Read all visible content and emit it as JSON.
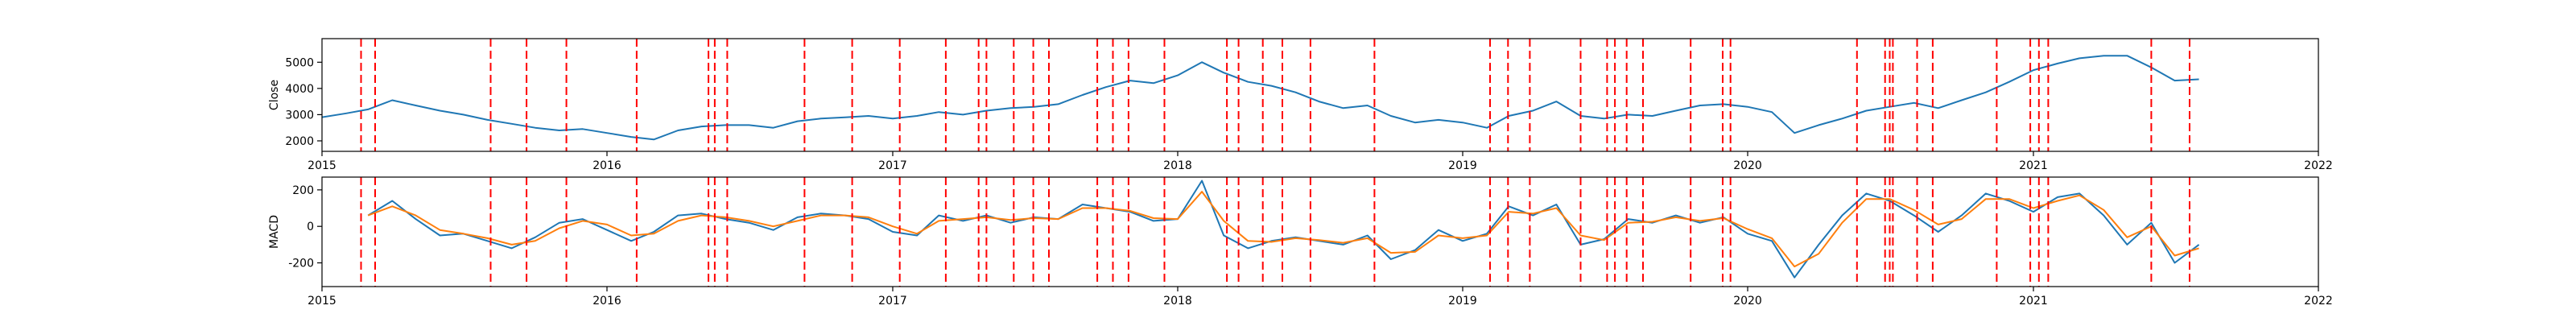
{
  "chart_data": [
    {
      "type": "line",
      "ylabel": "Close",
      "xlim": [
        "2015-01-01",
        "2022-01-01"
      ],
      "ylim": [
        1600,
        5900
      ],
      "yticks": [
        2000,
        3000,
        4000,
        5000
      ],
      "xticks": [
        "2015",
        "2016",
        "2017",
        "2018",
        "2019",
        "2020",
        "2021",
        "2022"
      ],
      "grid": false,
      "series": [
        {
          "color": "#1f77b4",
          "x": [
            "2015-01-01",
            "2015-02-01",
            "2015-03-01",
            "2015-04-01",
            "2015-05-01",
            "2015-06-01",
            "2015-07-01",
            "2015-08-01",
            "2015-09-01",
            "2015-10-01",
            "2015-11-01",
            "2015-12-01",
            "2016-01-01",
            "2016-02-01",
            "2016-03-01",
            "2016-04-01",
            "2016-05-01",
            "2016-06-01",
            "2016-07-01",
            "2016-08-01",
            "2016-09-01",
            "2016-10-01",
            "2016-11-01",
            "2016-12-01",
            "2017-01-01",
            "2017-02-01",
            "2017-03-01",
            "2017-04-01",
            "2017-05-01",
            "2017-06-01",
            "2017-07-01",
            "2017-08-01",
            "2017-09-01",
            "2017-10-01",
            "2017-11-01",
            "2017-12-01",
            "2018-01-01",
            "2018-02-01",
            "2018-03-01",
            "2018-04-01",
            "2018-05-01",
            "2018-06-01",
            "2018-07-01",
            "2018-08-01",
            "2018-09-01",
            "2018-10-01",
            "2018-11-01",
            "2018-12-01",
            "2019-01-01",
            "2019-02-01",
            "2019-03-01",
            "2019-04-01",
            "2019-05-01",
            "2019-06-01",
            "2019-07-01",
            "2019-08-01",
            "2019-09-01",
            "2019-10-01",
            "2019-11-01",
            "2019-12-01",
            "2020-01-01",
            "2020-02-01",
            "2020-03-01",
            "2020-04-01",
            "2020-05-01",
            "2020-06-01",
            "2020-07-01",
            "2020-08-01",
            "2020-09-01",
            "2020-10-01",
            "2020-11-01",
            "2020-12-01",
            "2021-01-01",
            "2021-02-01",
            "2021-03-01",
            "2021-04-01",
            "2021-05-01",
            "2021-06-01",
            "2021-07-01",
            "2021-08-01"
          ],
          "y": [
            2900,
            3050,
            3200,
            3550,
            3350,
            3150,
            3000,
            2800,
            2650,
            2500,
            2400,
            2450,
            2300,
            2150,
            2050,
            2400,
            2550,
            2600,
            2600,
            2500,
            2750,
            2850,
            2900,
            2950,
            2850,
            2950,
            3100,
            3000,
            3150,
            3250,
            3300,
            3400,
            3750,
            4050,
            4300,
            4200,
            4500,
            5000,
            4600,
            4250,
            4100,
            3850,
            3500,
            3250,
            3350,
            2950,
            2700,
            2800,
            2700,
            2500,
            2950,
            3150,
            3500,
            2950,
            2850,
            3000,
            2950,
            3150,
            3350,
            3400,
            3300,
            3100,
            2300,
            2600,
            2850,
            3150,
            3300,
            3450,
            3250,
            3550,
            3850,
            4250,
            4700,
            4950,
            5150,
            5250,
            5250,
            4800,
            4300,
            4350
          ]
        }
      ],
      "vlines": {
        "color": "#ff0000",
        "x": [
          "2015-02-20",
          "2015-03-10",
          "2015-08-05",
          "2015-09-20",
          "2015-11-10",
          "2016-02-08",
          "2016-05-10",
          "2016-05-18",
          "2016-06-03",
          "2016-09-10",
          "2016-11-10",
          "2017-01-10",
          "2017-03-10",
          "2017-04-21",
          "2017-05-01",
          "2017-06-05",
          "2017-06-30",
          "2017-07-20",
          "2017-09-20",
          "2017-10-10",
          "2017-10-30",
          "2017-12-15",
          "2018-03-05",
          "2018-03-20",
          "2018-04-20",
          "2018-05-15",
          "2018-06-20",
          "2018-09-10",
          "2019-02-05",
          "2019-02-28",
          "2019-03-28",
          "2019-06-01",
          "2019-07-05",
          "2019-07-15",
          "2019-07-30",
          "2019-08-20",
          "2019-10-20",
          "2019-11-30",
          "2019-12-10",
          "2020-05-20",
          "2020-06-25",
          "2020-07-01",
          "2020-07-05",
          "2020-08-05",
          "2020-08-25",
          "2020-11-15",
          "2020-12-28",
          "2021-01-08",
          "2021-01-20",
          "2021-06-01",
          "2021-07-20"
        ]
      }
    },
    {
      "type": "line",
      "ylabel": "MACD",
      "xlim": [
        "2015-01-01",
        "2022-01-01"
      ],
      "ylim": [
        -330,
        270
      ],
      "yticks": [
        -200,
        0,
        200
      ],
      "xticks": [
        "2015",
        "2016",
        "2017",
        "2018",
        "2019",
        "2020",
        "2021",
        "2022"
      ],
      "grid": false,
      "series": [
        {
          "color": "#1f77b4",
          "x": [
            "2015-01-01",
            "2015-02-01",
            "2015-03-01",
            "2015-04-01",
            "2015-05-01",
            "2015-06-01",
            "2015-07-01",
            "2015-08-01",
            "2015-09-01",
            "2015-10-01",
            "2015-11-01",
            "2015-12-01",
            "2016-01-01",
            "2016-02-01",
            "2016-03-01",
            "2016-04-01",
            "2016-05-01",
            "2016-06-01",
            "2016-07-01",
            "2016-08-01",
            "2016-09-01",
            "2016-10-01",
            "2016-11-01",
            "2016-12-01",
            "2017-01-01",
            "2017-02-01",
            "2017-03-01",
            "2017-04-01",
            "2017-05-01",
            "2017-06-01",
            "2017-07-01",
            "2017-08-01",
            "2017-09-01",
            "2017-10-01",
            "2017-11-01",
            "2017-12-01",
            "2018-01-01",
            "2018-02-01",
            "2018-03-01",
            "2018-04-01",
            "2018-05-01",
            "2018-06-01",
            "2018-07-01",
            "2018-08-01",
            "2018-09-01",
            "2018-10-01",
            "2018-11-01",
            "2018-12-01",
            "2019-01-01",
            "2019-02-01",
            "2019-03-01",
            "2019-04-01",
            "2019-05-01",
            "2019-06-01",
            "2019-07-01",
            "2019-08-01",
            "2019-09-01",
            "2019-10-01",
            "2019-11-01",
            "2019-12-01",
            "2020-01-01",
            "2020-02-01",
            "2020-03-01",
            "2020-04-01",
            "2020-05-01",
            "2020-06-01",
            "2020-07-01",
            "2020-08-01",
            "2020-09-01",
            "2020-10-01",
            "2020-11-01",
            "2020-12-01",
            "2021-01-01",
            "2021-02-01",
            "2021-03-01",
            "2021-04-01",
            "2021-05-01",
            "2021-06-01",
            "2021-07-01",
            "2021-08-01"
          ],
          "y": [
            null,
            null,
            60,
            140,
            40,
            -50,
            -40,
            -80,
            -120,
            -60,
            20,
            40,
            -20,
            -80,
            -30,
            60,
            70,
            40,
            20,
            -20,
            50,
            70,
            60,
            40,
            -30,
            -50,
            60,
            30,
            60,
            20,
            50,
            40,
            120,
            100,
            80,
            30,
            40,
            250,
            -50,
            -120,
            -80,
            -60,
            -80,
            -100,
            -50,
            -180,
            -130,
            -20,
            -80,
            -40,
            110,
            60,
            120,
            -100,
            -70,
            40,
            20,
            60,
            20,
            50,
            -40,
            -80,
            -280,
            -100,
            60,
            180,
            140,
            60,
            -30,
            60,
            180,
            140,
            80,
            160,
            180,
            60,
            -100,
            20,
            -200,
            -100
          ]
        },
        {
          "color": "#ff7f0e",
          "x": [
            "2015-01-01",
            "2015-02-01",
            "2015-03-01",
            "2015-04-01",
            "2015-05-01",
            "2015-06-01",
            "2015-07-01",
            "2015-08-01",
            "2015-09-01",
            "2015-10-01",
            "2015-11-01",
            "2015-12-01",
            "2016-01-01",
            "2016-02-01",
            "2016-03-01",
            "2016-04-01",
            "2016-05-01",
            "2016-06-01",
            "2016-07-01",
            "2016-08-01",
            "2016-09-01",
            "2016-10-01",
            "2016-11-01",
            "2016-12-01",
            "2017-01-01",
            "2017-02-01",
            "2017-03-01",
            "2017-04-01",
            "2017-05-01",
            "2017-06-01",
            "2017-07-01",
            "2017-08-01",
            "2017-09-01",
            "2017-10-01",
            "2017-11-01",
            "2017-12-01",
            "2018-01-01",
            "2018-02-01",
            "2018-03-01",
            "2018-04-01",
            "2018-05-01",
            "2018-06-01",
            "2018-07-01",
            "2018-08-01",
            "2018-09-01",
            "2018-10-01",
            "2018-11-01",
            "2018-12-01",
            "2019-01-01",
            "2019-02-01",
            "2019-03-01",
            "2019-04-01",
            "2019-05-01",
            "2019-06-01",
            "2019-07-01",
            "2019-08-01",
            "2019-09-01",
            "2019-10-01",
            "2019-11-01",
            "2019-12-01",
            "2020-01-01",
            "2020-02-01",
            "2020-03-01",
            "2020-04-01",
            "2020-05-01",
            "2020-06-01",
            "2020-07-01",
            "2020-08-01",
            "2020-09-01",
            "2020-10-01",
            "2020-11-01",
            "2020-12-01",
            "2021-01-01",
            "2021-02-01",
            "2021-03-01",
            "2021-04-01",
            "2021-05-01",
            "2021-06-01",
            "2021-07-01",
            "2021-08-01"
          ],
          "y": [
            null,
            null,
            60,
            110,
            60,
            -20,
            -40,
            -65,
            -100,
            -80,
            -10,
            30,
            10,
            -50,
            -40,
            30,
            60,
            50,
            30,
            0,
            30,
            60,
            60,
            50,
            0,
            -40,
            30,
            40,
            50,
            35,
            45,
            40,
            100,
            100,
            85,
            45,
            40,
            190,
            30,
            -80,
            -85,
            -65,
            -75,
            -90,
            -65,
            -145,
            -140,
            -50,
            -65,
            -50,
            80,
            70,
            100,
            -50,
            -75,
            20,
            25,
            50,
            30,
            45,
            -15,
            -65,
            -220,
            -150,
            20,
            150,
            150,
            90,
            10,
            40,
            150,
            150,
            100,
            140,
            170,
            90,
            -60,
            0,
            -160,
            -120
          ]
        }
      ],
      "vlines": {
        "color": "#ff0000",
        "x": [
          "2015-02-20",
          "2015-03-10",
          "2015-08-05",
          "2015-09-20",
          "2015-11-10",
          "2016-02-08",
          "2016-05-10",
          "2016-05-18",
          "2016-06-03",
          "2016-09-10",
          "2016-11-10",
          "2017-01-10",
          "2017-03-10",
          "2017-04-21",
          "2017-05-01",
          "2017-06-05",
          "2017-06-30",
          "2017-07-20",
          "2017-09-20",
          "2017-10-10",
          "2017-10-30",
          "2017-12-15",
          "2018-03-05",
          "2018-03-20",
          "2018-04-20",
          "2018-05-15",
          "2018-06-20",
          "2018-09-10",
          "2019-02-05",
          "2019-02-28",
          "2019-03-28",
          "2019-06-01",
          "2019-07-05",
          "2019-07-15",
          "2019-07-30",
          "2019-08-20",
          "2019-10-20",
          "2019-11-30",
          "2019-12-10",
          "2020-05-20",
          "2020-06-25",
          "2020-07-01",
          "2020-07-05",
          "2020-08-05",
          "2020-08-25",
          "2020-11-15",
          "2020-12-28",
          "2021-01-08",
          "2021-01-20",
          "2021-06-01",
          "2021-07-20"
        ]
      }
    }
  ]
}
